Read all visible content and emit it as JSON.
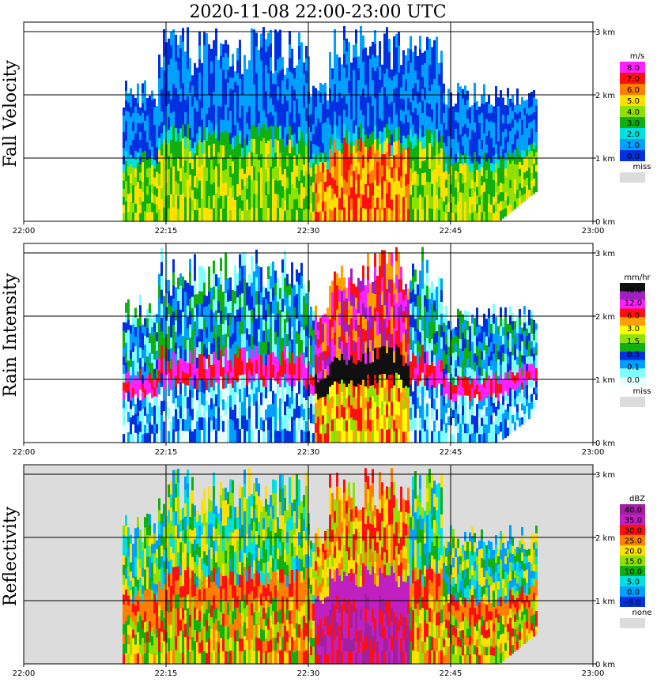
{
  "title": "2020-11-08   22:00-23:00 UTC",
  "chart_data": {
    "type": "heatmap",
    "title": "2020-11-08   22:00-23:00 UTC",
    "x_ticks": [
      "22:00",
      "22:15",
      "22:30",
      "22:45",
      "23:00"
    ],
    "x_range_minutes": [
      0,
      60
    ],
    "y_ticks": [
      "0 km",
      "1 km",
      "2 km",
      "3 km"
    ],
    "y_range_km": [
      0,
      3.1
    ],
    "grid": true,
    "panels": [
      {
        "ylabel": "Fall Velocity",
        "unit": "m/s",
        "legend_labels": [
          "8.0",
          "7.0",
          "6.0",
          "5.0",
          "4.0",
          "3.0",
          "2.0",
          "1.0",
          "0.0"
        ],
        "legend_colors": [
          "#ff20ff",
          "#ff1010",
          "#ff8000",
          "#ffe000",
          "#90e000",
          "#10b010",
          "#00e0e0",
          "#00a0ff",
          "#0030e0"
        ],
        "missing_label": "miss",
        "missing_color": "#dcdcdc"
      },
      {
        "ylabel": "Rain Intensity",
        "unit": "mm/hr",
        "legend_labels": [
          "48.0",
          "12.0",
          "6.0",
          "3.0",
          "1.5",
          "0.5",
          "0.1",
          "0.0"
        ],
        "legend_colors": [
          "#101010",
          "#a020c0",
          "#ff20ff",
          "#ff1010",
          "#ffa000",
          "#ffff00",
          "#90e000",
          "#10b010",
          "#0030e0",
          "#00a0ff",
          "#80ffff",
          "#e8ffff"
        ],
        "missing_label": "miss",
        "missing_color": "#dcdcdc"
      },
      {
        "ylabel": "Reflectivity",
        "unit": "dBZ",
        "legend_labels": [
          "40.0",
          "35.0",
          "30.0",
          "25.0",
          "20.0",
          "15.0",
          "10.0",
          "5.0",
          "0.0",
          "-5.0"
        ],
        "legend_colors": [
          "#a020a0",
          "#c020c0",
          "#ff1010",
          "#ff8000",
          "#ffe000",
          "#90e000",
          "#10b010",
          "#00e0e0",
          "#00a0ff",
          "#0030e0"
        ],
        "missing_label": "none",
        "missing_color": "#dcdcdc"
      }
    ]
  }
}
